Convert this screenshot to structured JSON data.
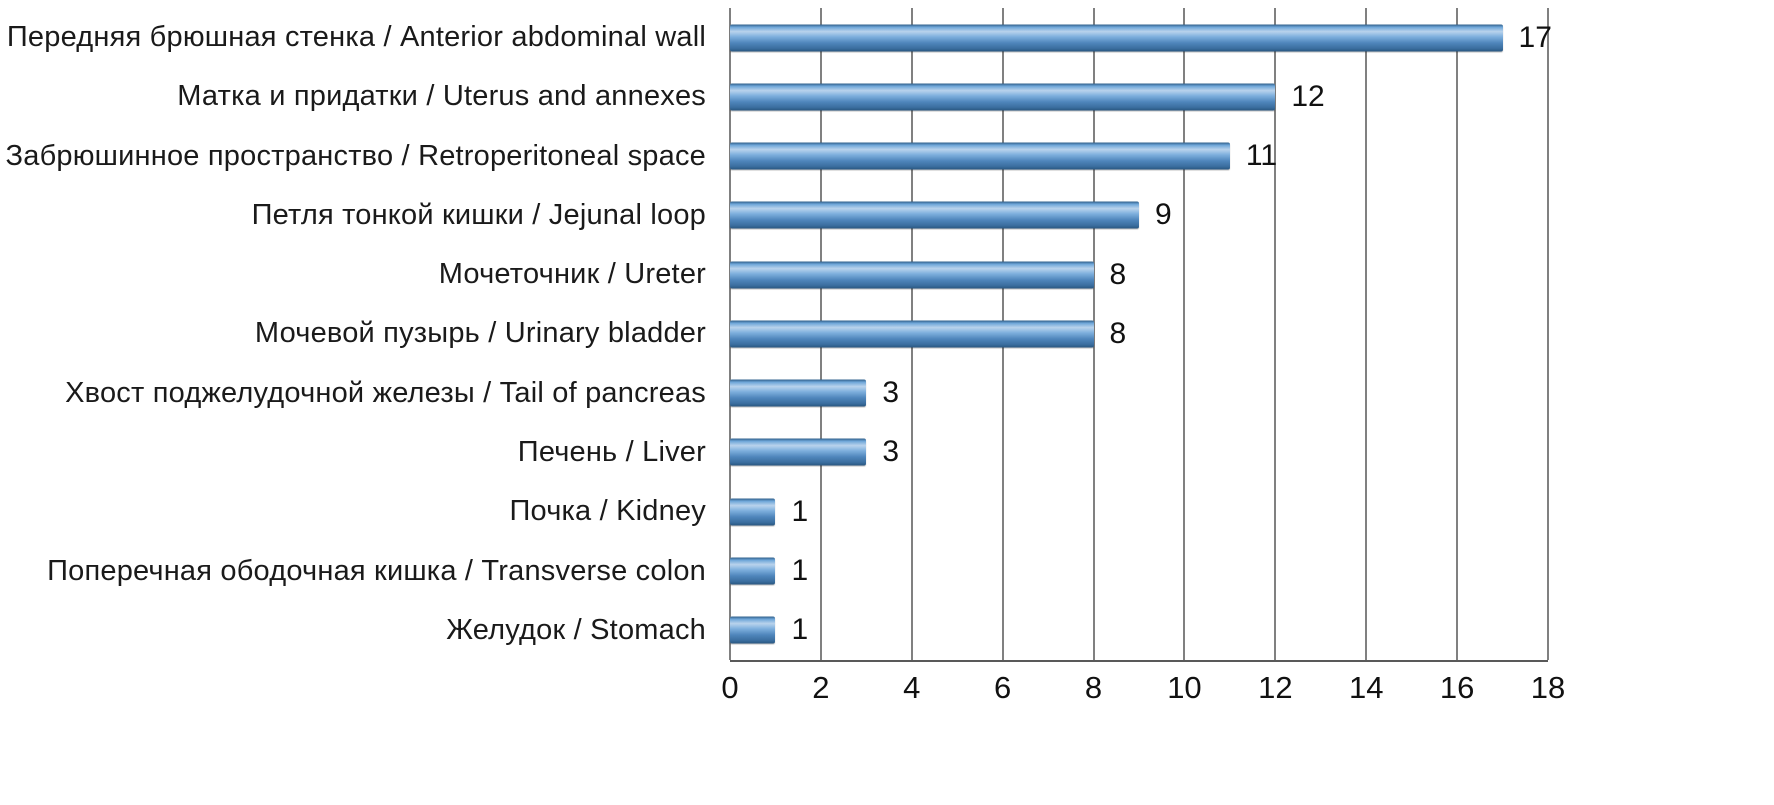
{
  "chart_data": {
    "type": "bar",
    "orientation": "horizontal",
    "title": "",
    "xlabel": "",
    "ylabel": "",
    "categories": [
      "Передняя брюшная стенка / Anterior abdominal wall",
      "Матка и придатки / Uterus and annexes",
      "Забрюшинное пространство / Retroperitoneal space",
      "Петля тонкой кишки / Jejunal loop",
      "Мочеточник / Ureter",
      "Мочевой пузырь / Urinary bladder",
      "Хвост поджелудочной железы / Tail of pancreas",
      "Печень / Liver",
      "Почка / Kidney",
      "Поперечная ободочная кишка / Transverse colon",
      "Желудок / Stomach"
    ],
    "values": [
      17,
      12,
      11,
      9,
      8,
      8,
      3,
      3,
      1,
      1,
      1
    ],
    "xlim": [
      0,
      18
    ],
    "xticks": [
      0,
      2,
      4,
      6,
      8,
      10,
      12,
      14,
      16,
      18
    ],
    "grid": "vertical",
    "legend": "none",
    "bar_color": "#4f81bd",
    "gridline_color": "#808080",
    "axis_line_color": "#595959",
    "text_color": "#1a1a1a",
    "value_labels_shown": true
  }
}
